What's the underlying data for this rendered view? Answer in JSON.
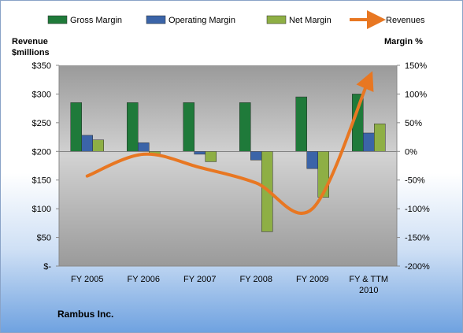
{
  "chart_data": {
    "type": "bar",
    "categories": [
      "FY 2005",
      "FY 2006",
      "FY 2007",
      "FY 2008",
      "FY 2009",
      [
        "FY & TTM",
        "2010"
      ]
    ],
    "series": [
      {
        "name": "Gross Margin",
        "axis": "right",
        "color": "#1f7a3a",
        "values": [
          85,
          85,
          85,
          85,
          95,
          100
        ]
      },
      {
        "name": "Operating Margin",
        "axis": "right",
        "color": "#3b64a8",
        "values": [
          28,
          15,
          -5,
          -15,
          -30,
          32
        ]
      },
      {
        "name": "Net Margin",
        "axis": "right",
        "color": "#8eaf45",
        "values": [
          20,
          -5,
          -18,
          -140,
          -80,
          48
        ]
      },
      {
        "name": "Revenues",
        "axis": "left",
        "type": "line",
        "color": "#e87722",
        "values": [
          157,
          195,
          172,
          145,
          100,
          325
        ]
      }
    ],
    "left_axis": {
      "title": [
        "Revenue",
        "$millions"
      ],
      "ylim": [
        0,
        350
      ],
      "ticks": [
        0,
        50,
        100,
        150,
        200,
        250,
        300,
        350
      ],
      "tick_labels": [
        "$-",
        "$50",
        "$100",
        "$150",
        "$200",
        "$250",
        "$300",
        "$350"
      ]
    },
    "right_axis": {
      "title": "Margin %",
      "ylim": [
        -200,
        150
      ],
      "ticks": [
        -200,
        -150,
        -100,
        -50,
        0,
        50,
        100,
        150
      ],
      "tick_labels": [
        "-200%",
        "-150%",
        "-100%",
        "-50%",
        "0%",
        "50%",
        "100%",
        "150%"
      ]
    },
    "legend_position": "top",
    "gridlines": false
  },
  "footer": {
    "company": "Rambus Inc."
  }
}
